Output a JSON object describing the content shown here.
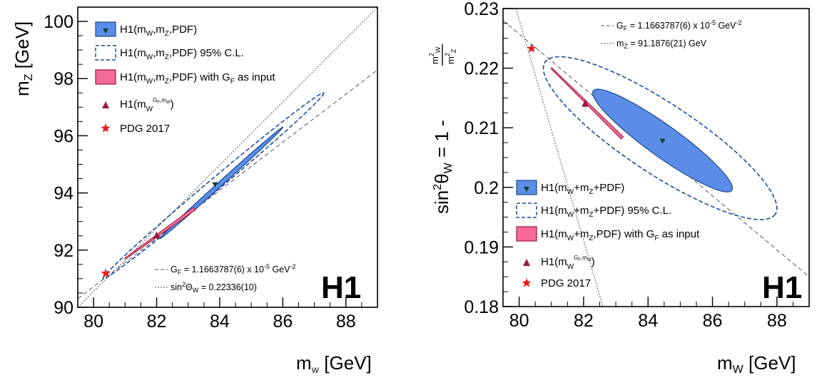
{
  "colors": {
    "fill_blue": "#5b8de8",
    "edge_blue": "#1a4a8a",
    "ci_dash": "#1e4c98",
    "crimson": "#9b1a3c",
    "pink": "#f56a98",
    "star_red": "#ee1c1c",
    "marker_green": "#0b3b2b"
  },
  "left": {
    "logo": "H1",
    "xlabel": "m_W [GeV]",
    "ylabel": "m_Z [GeV]",
    "legend": {
      "fit": "H1(m_W,m_Z,PDF)",
      "ci": "H1(m_W,m_Z,PDF) 95% C.L.",
      "gf_input": "H1(m_W,m_Z,PDF) with G_F as input",
      "h1_gf": "H1(m_W^(G_F,m_W))",
      "pdg": "PDG 2017"
    },
    "annotations": {
      "gf": "G_F = 1.1663787(6) x 10^-5 GeV^-2",
      "sin2": "sin²Θ_W = 0.22336(10)"
    }
  },
  "right": {
    "logo": "H1",
    "xlabel": "m_W [GeV]",
    "ylabel": "sin²θ_W = 1 - m_W²/m_Z²",
    "legend": {
      "fit": "H1(m_W+m_Z+PDF)",
      "ci": "H1(m_W+m_Z+PDF) 95% C.L.",
      "gf_input": "H1(m_W+m_Z,PDF) with G_F as input",
      "h1_gf": "H1(m_W^(G_F,m_W))",
      "pdg": "PDG 2017"
    },
    "annotations": {
      "gf": "G_F = 1.1663787(6) x 10^-5 GeV^-2",
      "mz": "m_Z = 91.1876(21) GeV"
    }
  },
  "chart_data": [
    {
      "type": "scatter",
      "xlabel": "m_W [GeV]",
      "ylabel": "m_Z [GeV]",
      "xlim": [
        79.5,
        89
      ],
      "ylim": [
        90,
        100.5
      ],
      "x_ticks": [
        80,
        82,
        84,
        86,
        88
      ],
      "y_ticks": [
        90,
        92,
        94,
        96,
        98,
        100
      ],
      "x_tick_labels": [
        "80",
        "82",
        "84",
        "86",
        "88"
      ],
      "y_tick_labels": [
        "90",
        "92",
        "94",
        "96",
        "98",
        "100"
      ],
      "grid": false,
      "legend_position": "top-left",
      "fit_point": {
        "x": 83.85,
        "y": 94.3
      },
      "fit_ellipse": {
        "center": [
          83.85,
          94.3
        ],
        "x_range": [
          82.1,
          86.0
        ],
        "y_range": [
          92.4,
          96.3
        ],
        "width": 0.16
      },
      "ci95_ellipse": {
        "center": [
          83.85,
          94.3
        ],
        "x_range": [
          80.3,
          87.3
        ],
        "y_range": [
          91.0,
          97.5
        ],
        "width": 0.42
      },
      "gf_input_band": {
        "from": [
          81.0,
          91.7
        ],
        "to": [
          83.2,
          93.45
        ]
      },
      "h1_gf_mw_point": {
        "x": 82.0,
        "y": 92.5
      },
      "pdg_point": {
        "x": 80.385,
        "y": 91.1876
      },
      "gf_line": [
        [
          79.5,
          90.3
        ],
        [
          89.0,
          98.3
        ]
      ],
      "sin2_line": [
        [
          79.5,
          90.0
        ],
        [
          89.0,
          100.5
        ]
      ]
    },
    {
      "type": "scatter",
      "xlabel": "m_W [GeV]",
      "ylabel": "sin²θ_W = 1 - m_W²/m_Z²",
      "xlim": [
        79.5,
        89
      ],
      "ylim": [
        0.18,
        0.23
      ],
      "x_ticks": [
        80,
        82,
        84,
        86,
        88
      ],
      "y_ticks": [
        0.18,
        0.19,
        0.2,
        0.21,
        0.22,
        0.23
      ],
      "x_tick_labels": [
        "80",
        "82",
        "84",
        "86",
        "88"
      ],
      "y_tick_labels": [
        "0.18",
        "0.19",
        "0.2",
        "0.21",
        "0.22",
        "0.23"
      ],
      "grid": false,
      "legend_position": "bottom-left",
      "fit_point": {
        "x": 84.45,
        "y": 0.2078
      },
      "fit_ellipse": {
        "center": [
          84.45,
          0.2078
        ],
        "x_range": [
          82.3,
          86.6
        ],
        "y_range": [
          0.1995,
          0.2162
        ],
        "width": 0.0053
      },
      "ci95_ellipse": {
        "center": [
          84.45,
          0.2078
        ],
        "x_range": [
          80.8,
          87.95
        ],
        "y_range": [
          0.1955,
          0.221
        ],
        "width": 0.0118
      },
      "gf_input_band": {
        "from": [
          81.0,
          0.22
        ],
        "to": [
          83.2,
          0.2083
        ]
      },
      "h1_gf_mw_point": {
        "x": 82.05,
        "y": 0.214
      },
      "pdg_point": {
        "x": 80.385,
        "y": 0.2233
      },
      "gf_line": [
        [
          79.5,
          0.228
        ],
        [
          89.0,
          0.185
        ]
      ],
      "mz_line": [
        [
          79.9,
          0.23
        ],
        [
          82.6,
          0.18
        ]
      ]
    }
  ]
}
